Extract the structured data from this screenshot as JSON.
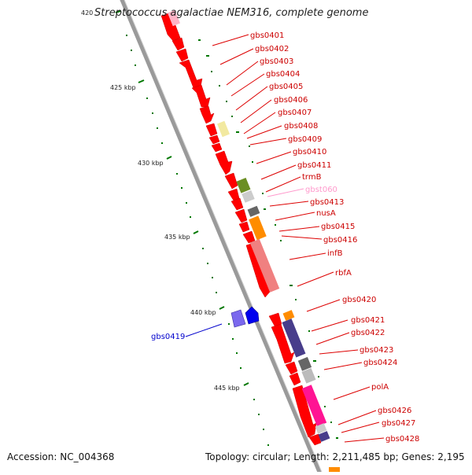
{
  "title": "Streptococcus agalactiae NEM316, complete genome",
  "footer": {
    "accession": "Accession: NC_004368",
    "topology": "Topology: circular; Length: 2,211,485 bp; Genes: 2,195"
  },
  "kbp_labels": [
    "420",
    "425 kbp",
    "430 kbp",
    "435 kbp",
    "440 kbp",
    "445 kbp"
  ],
  "genes_right": [
    {
      "name": "gbs0401",
      "color": "#cc0000"
    },
    {
      "name": "gbs0402",
      "color": "#cc0000"
    },
    {
      "name": "gbs0403",
      "color": "#cc0000"
    },
    {
      "name": "gbs0404",
      "color": "#cc0000"
    },
    {
      "name": "gbs0405",
      "color": "#cc0000"
    },
    {
      "name": "gbs0406",
      "color": "#cc0000"
    },
    {
      "name": "gbs0407",
      "color": "#cc0000"
    },
    {
      "name": "gbs0408",
      "color": "#cc0000"
    },
    {
      "name": "gbs0409",
      "color": "#cc0000"
    },
    {
      "name": "gbs0410",
      "color": "#cc0000"
    },
    {
      "name": "gbs0411",
      "color": "#cc0000"
    },
    {
      "name": "trmB",
      "color": "#cc0000"
    },
    {
      "name": "gbst060",
      "color": "#ff99cc"
    },
    {
      "name": "gbs0413",
      "color": "#cc0000"
    },
    {
      "name": "nusA",
      "color": "#cc0000"
    },
    {
      "name": "gbs0415",
      "color": "#cc0000"
    },
    {
      "name": "gbs0416",
      "color": "#cc0000"
    },
    {
      "name": "infB",
      "color": "#cc0000"
    },
    {
      "name": "rbfA",
      "color": "#cc0000"
    },
    {
      "name": "gbs0420",
      "color": "#cc0000"
    },
    {
      "name": "gbs0421",
      "color": "#cc0000"
    },
    {
      "name": "gbs0422",
      "color": "#cc0000"
    },
    {
      "name": "gbs0423",
      "color": "#cc0000"
    },
    {
      "name": "gbs0424",
      "color": "#cc0000"
    },
    {
      "name": "polA",
      "color": "#cc0000"
    },
    {
      "name": "gbs0426",
      "color": "#cc0000"
    },
    {
      "name": "gbs0427",
      "color": "#cc0000"
    },
    {
      "name": "gbs0428",
      "color": "#cc0000"
    }
  ],
  "genes_left": [
    {
      "name": "gbs0419",
      "color": "#0000cc"
    }
  ],
  "colors": {
    "gene_red": "#ff0000",
    "backbone": "#888888",
    "label_red": "#cc0000",
    "label_blue": "#0000cc",
    "label_pink": "#ff99cc",
    "tick_green": "#007700"
  }
}
